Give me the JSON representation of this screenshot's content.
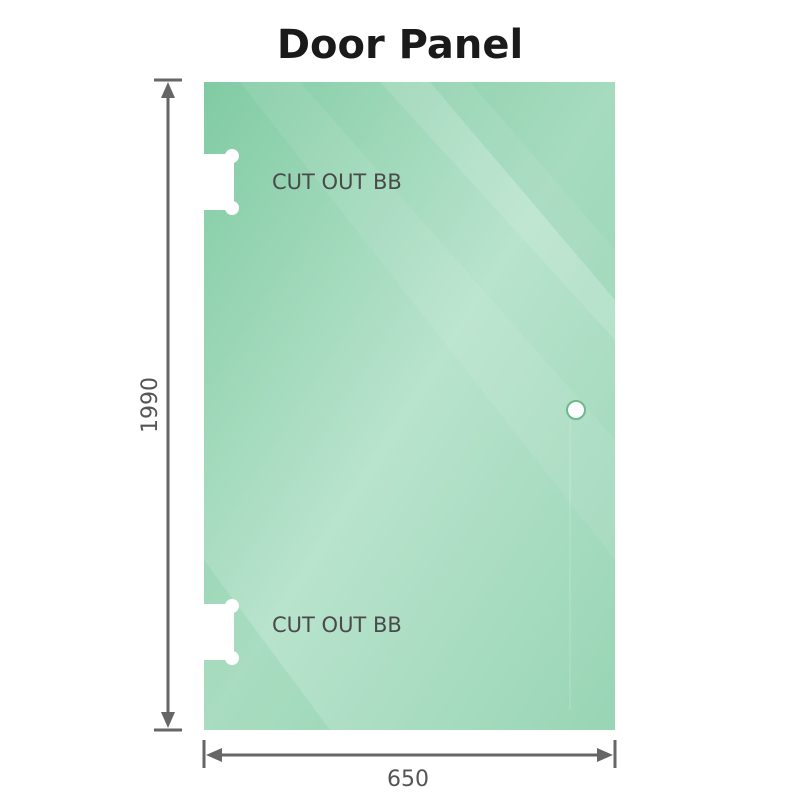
{
  "title": "Door Panel",
  "cutouts": [
    {
      "label": "CUT OUT BB"
    },
    {
      "label": "CUT OUT BB"
    }
  ],
  "dimensions": {
    "height": "1990",
    "width": "650"
  },
  "colors": {
    "glass": "#86cda8",
    "glass_light": "#b5e2ca",
    "dimension_line": "#666666"
  }
}
